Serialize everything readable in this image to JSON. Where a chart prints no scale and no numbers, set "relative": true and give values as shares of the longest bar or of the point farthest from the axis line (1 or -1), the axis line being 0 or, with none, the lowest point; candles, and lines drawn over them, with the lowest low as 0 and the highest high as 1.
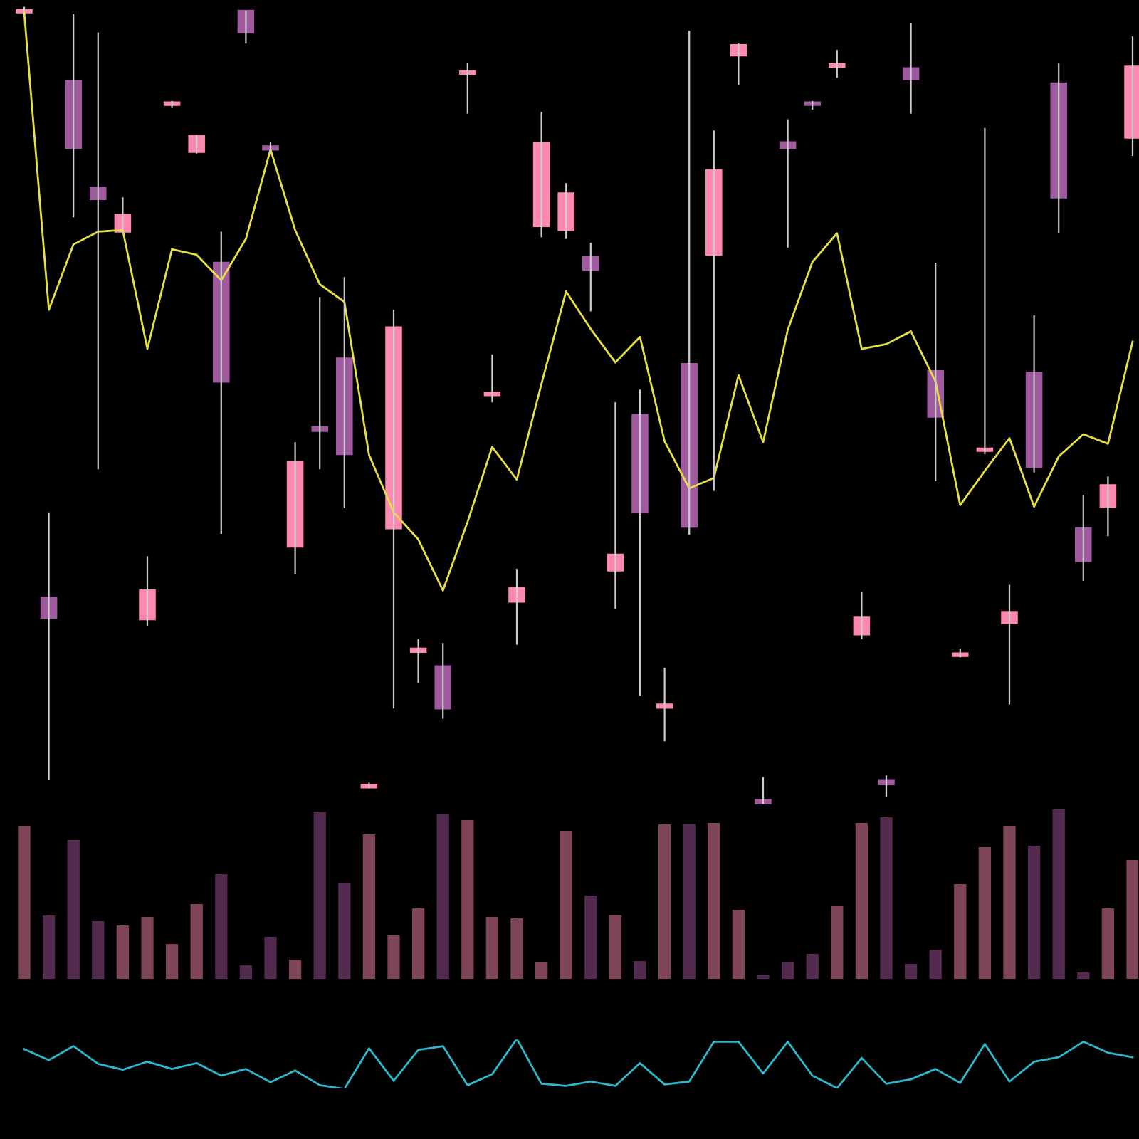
{
  "chart_data": [
    {
      "type": "candlestick",
      "relative": true,
      "categories": [
        null,
        null,
        null,
        null,
        null,
        null,
        null,
        null,
        null,
        null,
        null,
        null,
        null,
        null,
        null,
        null,
        null,
        null,
        null,
        null,
        null,
        null,
        null,
        null,
        null,
        null,
        null,
        null,
        null,
        null,
        null,
        null,
        null,
        null,
        null,
        null,
        null,
        null,
        null,
        null,
        null,
        null,
        null,
        null,
        null,
        null
      ],
      "ohlc": [
        [
          0.993,
          1.0,
          0.993,
          0.995
        ],
        [
          0.259,
          0.366,
          0.03,
          0.234
        ],
        [
          0.907,
          0.991,
          0.736,
          0.823
        ],
        [
          0.773,
          0.968,
          0.42,
          0.759
        ],
        [
          0.718,
          0.761,
          0.718,
          0.739
        ],
        [
          0.232,
          0.311,
          0.223,
          0.268
        ],
        [
          0.877,
          0.882,
          0.873,
          0.88
        ],
        [
          0.818,
          0.839,
          0.816,
          0.838
        ],
        [
          0.679,
          0.718,
          0.339,
          0.53
        ],
        [
          0.995,
          0.995,
          0.954,
          0.968
        ],
        [
          0.825,
          0.83,
          0.816,
          0.821
        ],
        [
          0.323,
          0.454,
          0.288,
          0.429
        ],
        [
          0.473,
          0.636,
          0.42,
          0.468
        ],
        [
          0.559,
          0.661,
          0.371,
          0.439
        ],
        [
          0.021,
          0.027,
          0.02,
          0.023
        ],
        [
          0.346,
          0.62,
          0.12,
          0.598
        ],
        [
          0.191,
          0.207,
          0.152,
          0.195
        ],
        [
          0.173,
          0.202,
          0.107,
          0.12
        ],
        [
          0.916,
          0.93,
          0.866,
          0.918
        ],
        [
          0.513,
          0.564,
          0.504,
          0.514
        ],
        [
          0.254,
          0.295,
          0.2,
          0.271
        ],
        [
          0.725,
          0.868,
          0.711,
          0.829
        ],
        [
          0.72,
          0.779,
          0.709,
          0.766
        ],
        [
          0.686,
          0.704,
          0.618,
          0.67
        ],
        [
          0.293,
          0.504,
          0.245,
          0.313
        ],
        [
          0.488,
          0.52,
          0.136,
          0.366
        ],
        [
          0.121,
          0.171,
          0.079,
          0.125
        ],
        [
          0.552,
          0.97,
          0.338,
          0.348
        ],
        [
          0.689,
          0.845,
          0.393,
          0.795
        ],
        [
          0.939,
          0.954,
          0.902,
          0.952
        ],
        [
          0.005,
          0.034,
          0.0,
          0.001
        ],
        [
          0.83,
          0.859,
          0.698,
          0.823
        ],
        [
          0.88,
          0.882,
          0.871,
          0.877
        ],
        [
          0.925,
          0.946,
          0.911,
          0.927
        ],
        [
          0.213,
          0.266,
          0.207,
          0.234
        ],
        [
          0.03,
          0.036,
          0.009,
          0.025
        ],
        [
          0.923,
          0.98,
          0.866,
          0.909
        ],
        [
          0.543,
          0.679,
          0.405,
          0.486
        ],
        [
          0.186,
          0.195,
          0.184,
          0.189
        ],
        [
          0.443,
          0.848,
          0.439,
          0.446
        ],
        [
          0.227,
          0.275,
          0.125,
          0.241
        ],
        [
          0.541,
          0.613,
          0.416,
          0.423
        ],
        [
          0.904,
          0.929,
          0.716,
          0.761
        ],
        [
          0.346,
          0.388,
          0.28,
          0.305
        ],
        [
          0.373,
          0.411,
          0.336,
          0.4
        ],
        [
          0.836,
          0.963,
          0.813,
          0.925
        ]
      ],
      "colors": [
        "#ff88b0",
        "#a05aa0",
        "#a05aa0",
        "#a05aa0",
        "#ff88b0",
        "#ff88b0",
        "#ff88b0",
        "#ff88b0",
        "#a05aa0",
        "#a05aa0",
        "#a05aa0",
        "#ff88b0",
        "#a05aa0",
        "#a05aa0",
        "#ff88b0",
        "#ff88b0",
        "#ff88b0",
        "#a05aa0",
        "#ff88b0",
        "#ff88b0",
        "#ff88b0",
        "#ff88b0",
        "#ff88b0",
        "#a05aa0",
        "#ff88b0",
        "#a05aa0",
        "#ff88b0",
        "#a05aa0",
        "#ff88b0",
        "#ff88b0",
        "#a05aa0",
        "#a05aa0",
        "#a05aa0",
        "#ff88b0",
        "#ff88b0",
        "#a05aa0",
        "#a05aa0",
        "#a05aa0",
        "#ff88b0",
        "#ff88b0",
        "#ff88b0",
        "#a05aa0",
        "#a05aa0",
        "#a05aa0",
        "#ff88b0",
        "#ff88b0"
      ],
      "series": [
        {
          "type": "line",
          "color": "#e8e040",
          "values": [
            0.993,
            0.62,
            0.702,
            0.718,
            0.72,
            0.571,
            0.696,
            0.689,
            0.657,
            0.709,
            0.821,
            0.72,
            0.652,
            0.63,
            0.438,
            0.366,
            0.332,
            0.268,
            0.354,
            0.448,
            0.407,
            0.527,
            0.643,
            0.596,
            0.554,
            0.586,
            0.455,
            0.396,
            0.409,
            0.538,
            0.454,
            0.595,
            0.68,
            0.716,
            0.571,
            0.577,
            0.593,
            0.53,
            0.375,
            0.418,
            0.459,
            0.373,
            0.436,
            0.464,
            0.452,
            0.58
          ]
        }
      ]
    },
    {
      "type": "bar",
      "relative": true,
      "categories": [
        null,
        null,
        null,
        null,
        null,
        null,
        null,
        null,
        null,
        null,
        null,
        null,
        null,
        null,
        null,
        null,
        null,
        null,
        null,
        null,
        null,
        null,
        null,
        null,
        null,
        null,
        null,
        null,
        null,
        null,
        null,
        null,
        null,
        null,
        null,
        null,
        null,
        null,
        null,
        null,
        null,
        null,
        null,
        null,
        null,
        null
      ],
      "values": [
        0.9,
        0.375,
        0.817,
        0.342,
        0.317,
        0.367,
        0.208,
        0.442,
        0.617,
        0.083,
        0.25,
        0.117,
        0.983,
        0.567,
        0.85,
        0.258,
        0.417,
        0.967,
        0.933,
        0.367,
        0.358,
        0.1,
        0.867,
        0.492,
        0.375,
        0.108,
        0.908,
        0.908,
        0.917,
        0.408,
        0.025,
        0.1,
        0.15,
        0.433,
        0.917,
        0.95,
        0.092,
        0.175,
        0.558,
        0.775,
        0.9,
        0.783,
        1.0,
        0.042,
        0.417,
        0.7
      ],
      "colors": [
        "#7e4459",
        "#522b4f",
        "#522b4f",
        "#522b4f",
        "#7e4459",
        "#7e4459",
        "#7e4459",
        "#7e4459",
        "#522b4f",
        "#522b4f",
        "#522b4f",
        "#7e4459",
        "#522b4f",
        "#522b4f",
        "#7e4459",
        "#7e4459",
        "#7e4459",
        "#522b4f",
        "#7e4459",
        "#7e4459",
        "#7e4459",
        "#7e4459",
        "#7e4459",
        "#522b4f",
        "#7e4459",
        "#522b4f",
        "#7e4459",
        "#522b4f",
        "#7e4459",
        "#7e4459",
        "#522b4f",
        "#522b4f",
        "#522b4f",
        "#7e4459",
        "#7e4459",
        "#522b4f",
        "#522b4f",
        "#522b4f",
        "#7e4459",
        "#7e4459",
        "#7e4459",
        "#522b4f",
        "#522b4f",
        "#522b4f",
        "#7e4459",
        "#7e4459"
      ]
    },
    {
      "type": "line",
      "relative": true,
      "categories": [
        null,
        null,
        null,
        null,
        null,
        null,
        null,
        null,
        null,
        null,
        null,
        null,
        null,
        null,
        null,
        null,
        null,
        null,
        null,
        null,
        null,
        null,
        null,
        null,
        null,
        null,
        null,
        null,
        null,
        null,
        null,
        null,
        null,
        null,
        null,
        null,
        null,
        null,
        null,
        null,
        null,
        null,
        null,
        null,
        null,
        null
      ],
      "series": [
        {
          "color": "#2ab8cc",
          "values": [
            0.794,
            0.574,
            0.853,
            0.5,
            0.382,
            0.544,
            0.397,
            0.515,
            0.265,
            0.397,
            0.132,
            0.368,
            0.074,
            0.0,
            0.809,
            0.162,
            0.779,
            0.853,
            0.074,
            0.294,
            1.0,
            0.103,
            0.059,
            0.147,
            0.059,
            0.515,
            0.088,
            0.147,
            0.941,
            0.941,
            0.309,
            0.941,
            0.265,
            0.015,
            0.618,
            0.103,
            0.191,
            0.397,
            0.118,
            0.897,
            0.147,
            0.544,
            0.632,
            0.941,
            0.721,
            0.632
          ]
        }
      ]
    }
  ]
}
